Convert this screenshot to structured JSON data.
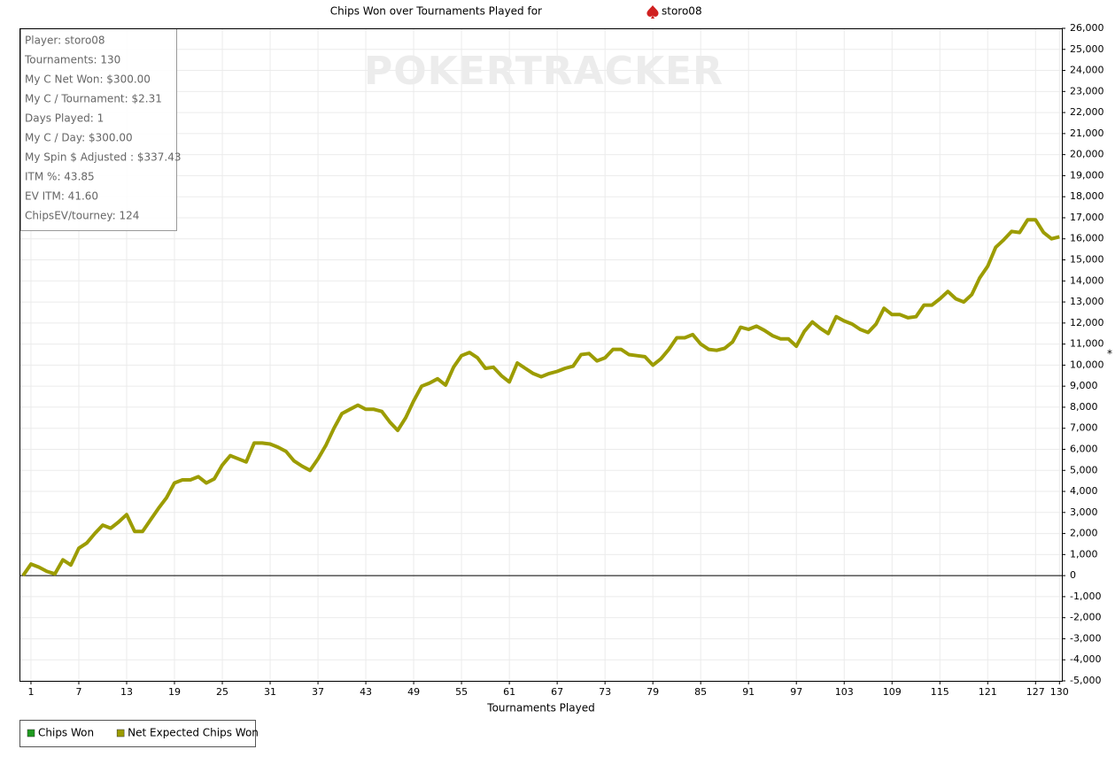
{
  "chart_data": {
    "type": "line",
    "title": "Chips Won over Tournaments Played for",
    "title_player": "storo08",
    "watermark": "POKERTRACKER",
    "side_marker": "*",
    "x_label": "Tournaments Played",
    "info": [
      "Player: storo08",
      "Tournaments: 130",
      "My C Net Won: $300.00",
      "My C / Tournament: $2.31",
      "Days Played: 1",
      "My C / Day: $300.00",
      "My Spin $ Adjusted : $337.43",
      "ITM %: 43.85",
      "EV ITM: 41.60",
      "ChipsEV/tourney: 124"
    ],
    "legend": [
      {
        "name": "Chips Won",
        "color": "#1f9a1f"
      },
      {
        "name": "Net Expected Chips Won",
        "color": "#9c9c00"
      }
    ],
    "grid": true,
    "xlim": [
      -0.44,
      130.3
    ],
    "xticks": [
      1,
      7,
      13,
      19,
      25,
      31,
      37,
      43,
      49,
      55,
      61,
      67,
      73,
      79,
      85,
      91,
      97,
      103,
      109,
      115,
      121,
      127,
      130
    ],
    "ylim": [
      -5000,
      26000
    ],
    "yticks": [
      {
        "value": -5000,
        "label": "-5,000"
      },
      {
        "value": -4000,
        "label": "-4,000"
      },
      {
        "value": -3000,
        "label": "-3,000"
      },
      {
        "value": -2000,
        "label": "-2,000"
      },
      {
        "value": -1000,
        "label": "-1,000"
      },
      0,
      {
        "value": 1000,
        "label": "1,000"
      },
      {
        "value": 2000,
        "label": "2,000"
      },
      {
        "value": 3000,
        "label": "3,000"
      },
      {
        "value": 4000,
        "label": "4,000"
      },
      {
        "value": 5000,
        "label": "5,000"
      },
      {
        "value": 6000,
        "label": "6,000"
      },
      {
        "value": 7000,
        "label": "7,000"
      },
      {
        "value": 8000,
        "label": "8,000"
      },
      {
        "value": 9000,
        "label": "9,000"
      },
      {
        "value": 10000,
        "label": "10,000"
      },
      {
        "value": 11000,
        "label": "11,000"
      },
      {
        "value": 12000,
        "label": "12,000"
      },
      {
        "value": 13000,
        "label": "13,000"
      },
      {
        "value": 14000,
        "label": "14,000"
      },
      {
        "value": 15000,
        "label": "15,000"
      },
      {
        "value": 16000,
        "label": "16,000"
      },
      {
        "value": 17000,
        "label": "17,000"
      },
      {
        "value": 18000,
        "label": "18,000"
      },
      {
        "value": 19000,
        "label": "19,000"
      },
      {
        "value": 20000,
        "label": "20,000"
      },
      {
        "value": 21000,
        "label": "21,000"
      },
      {
        "value": 22000,
        "label": "22,000"
      },
      {
        "value": 23000,
        "label": "23,000"
      },
      {
        "value": 24000,
        "label": "24,000"
      },
      {
        "value": 25000,
        "label": "25,000"
      },
      {
        "value": 26000,
        "label": "26,000"
      }
    ],
    "x": [
      0,
      1,
      2,
      3,
      4,
      5,
      6,
      7,
      8,
      9,
      10,
      11,
      12,
      13,
      14,
      15,
      16,
      17,
      18,
      19,
      20,
      21,
      22,
      23,
      24,
      25,
      26,
      27,
      28,
      29,
      30,
      31,
      32,
      33,
      34,
      35,
      36,
      37,
      38,
      39,
      40,
      41,
      42,
      43,
      44,
      45,
      46,
      47,
      48,
      49,
      50,
      51,
      52,
      53,
      54,
      55,
      56,
      57,
      58,
      59,
      60,
      61,
      62,
      63,
      64,
      65,
      66,
      67,
      68,
      69,
      70,
      71,
      72,
      73,
      74,
      75,
      76,
      77,
      78,
      79,
      80,
      81,
      82,
      83,
      84,
      85,
      86,
      87,
      88,
      89,
      90,
      91,
      92,
      93,
      94,
      95,
      96,
      97,
      98,
      99,
      100,
      101,
      102,
      103,
      104,
      105,
      106,
      107,
      108,
      109,
      110,
      111,
      112,
      113,
      114,
      115,
      116,
      117,
      118,
      119,
      120,
      121,
      122,
      123,
      124,
      125,
      126,
      127,
      128,
      129,
      130
    ],
    "series": [
      {
        "color": "#9c9c00",
        "values": [
          0,
          550,
          400,
          200,
          80,
          750,
          500,
          1300,
          1550,
          2000,
          2400,
          2250,
          2550,
          2900,
          2100,
          2100,
          2650,
          3200,
          3700,
          4400,
          4550,
          4550,
          4700,
          4400,
          4600,
          5250,
          5700,
          5550,
          5400,
          6300,
          6300,
          6250,
          6100,
          5900,
          5450,
          5200,
          5000,
          5550,
          6200,
          7000,
          7700,
          7900,
          8100,
          7900,
          7900,
          7800,
          7300,
          6900,
          7500,
          8300,
          9000,
          9150,
          9350,
          9050,
          9900,
          10450,
          10600,
          10350,
          9850,
          9900,
          9500,
          9200,
          10100,
          9850,
          9600,
          9450,
          9600,
          9700,
          9850,
          9950,
          10500,
          10550,
          10200,
          10350,
          10750,
          10750,
          10500,
          10450,
          10400,
          10000,
          10300,
          10750,
          11300,
          11300,
          11450,
          11000,
          10750,
          10700,
          10800,
          11100,
          11800,
          11700,
          11850,
          11650,
          11400,
          11250,
          11250,
          10900,
          11600,
          12050,
          11750,
          11500,
          12300,
          12100,
          11950,
          11700,
          11550,
          11950,
          12700,
          12400,
          12400,
          12250,
          12300,
          12850,
          12850,
          13150,
          13500,
          13150,
          13000,
          13350,
          14150,
          14700,
          15600,
          15950,
          16350,
          16300,
          16900,
          16900,
          16300,
          16000,
          16100
        ]
      }
    ]
  }
}
